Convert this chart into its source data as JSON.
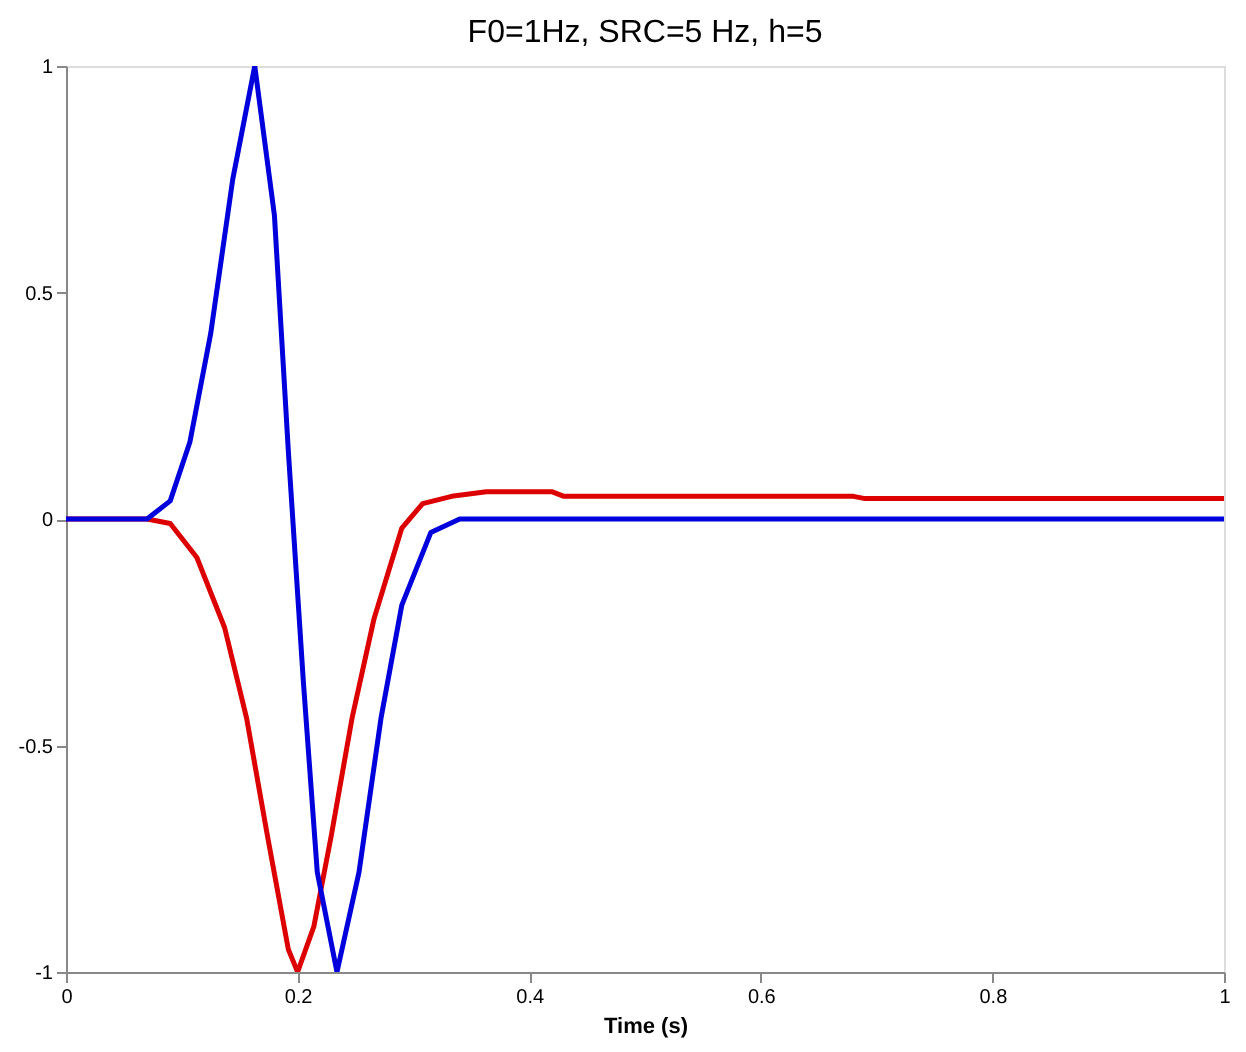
{
  "chart_data": {
    "type": "line",
    "title": "F0=1Hz, SRC=5 Hz, h=5",
    "xlabel": "Time (s)",
    "xlim": [
      0,
      1
    ],
    "ylim": [
      -1,
      1
    ],
    "xticks": [
      0,
      0.2,
      0.4,
      0.6,
      0.8,
      1
    ],
    "yticks": [
      -1,
      -0.5,
      0,
      0.5,
      1
    ],
    "grid": false,
    "legend": false,
    "marker": "none",
    "line_style": "solid",
    "series": [
      {
        "color": "#dd0000",
        "x": [
          0,
          0.07,
          0.09,
          0.113,
          0.137,
          0.156,
          0.174,
          0.192,
          0.2,
          0.214,
          0.229,
          0.247,
          0.266,
          0.29,
          0.308,
          0.333,
          0.363,
          0.42,
          0.43,
          0.68,
          0.69,
          1
        ],
        "values": [
          0,
          0,
          -0.01,
          -0.085,
          -0.24,
          -0.44,
          -0.7,
          -0.95,
          -1,
          -0.9,
          -0.7,
          -0.44,
          -0.22,
          -0.02,
          0.034,
          0.05,
          0.06,
          0.06,
          0.05,
          0.05,
          0.045,
          0.045
        ]
      },
      {
        "color": "#0000dd",
        "x": [
          0,
          0.07,
          0.09,
          0.107,
          0.125,
          0.144,
          0.163,
          0.18,
          0.192,
          0.205,
          0.217,
          0.234,
          0.253,
          0.272,
          0.29,
          0.315,
          0.34,
          1
        ],
        "values": [
          0,
          0,
          0.04,
          0.17,
          0.41,
          0.75,
          1,
          0.67,
          0.15,
          -0.36,
          -0.78,
          -1,
          -0.78,
          -0.44,
          -0.19,
          -0.03,
          0,
          0
        ]
      }
    ]
  }
}
